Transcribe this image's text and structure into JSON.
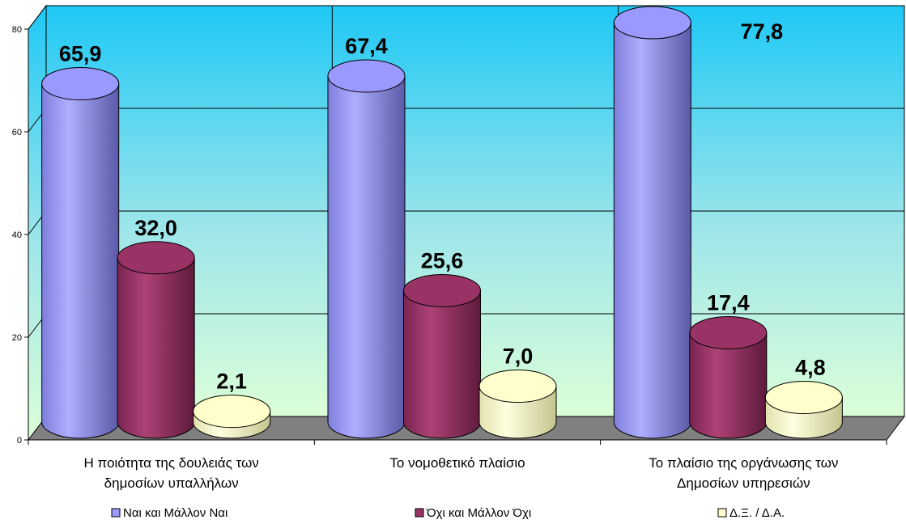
{
  "chart_data": {
    "type": "bar",
    "title": "",
    "xlabel": "",
    "ylabel": "",
    "ylim": [
      0,
      80
    ],
    "yticks": [
      0,
      20,
      40,
      60,
      80
    ],
    "grid": true,
    "legend_position": "bottom",
    "categories": [
      [
        "Η ποιότητα της δουλειάς των",
        "δημοσίων υπαλλήλων"
      ],
      [
        "Το νομοθετικό πλαίσιο"
      ],
      [
        "Το πλαίσιο της οργάνωσης των",
        "Δημοσίων υπηρεσιών"
      ]
    ],
    "series": [
      {
        "name": "Ναι και Μάλλον Ναι",
        "values": [
          65.9,
          67.4,
          77.8
        ],
        "labels": [
          "65,9",
          "67,4",
          "77,8"
        ],
        "color": "#9999ff"
      },
      {
        "name": "Όχι και Μάλλον Όχι",
        "values": [
          32.0,
          25.6,
          17.4
        ],
        "labels": [
          "32,0",
          "25,6",
          "17,4"
        ],
        "color": "#993366"
      },
      {
        "name": "Δ.Ξ. / Δ.Α.",
        "values": [
          2.1,
          7.0,
          4.8
        ],
        "labels": [
          "2,1",
          "7,0",
          "4,8"
        ],
        "color": "#ffffcc"
      }
    ]
  }
}
